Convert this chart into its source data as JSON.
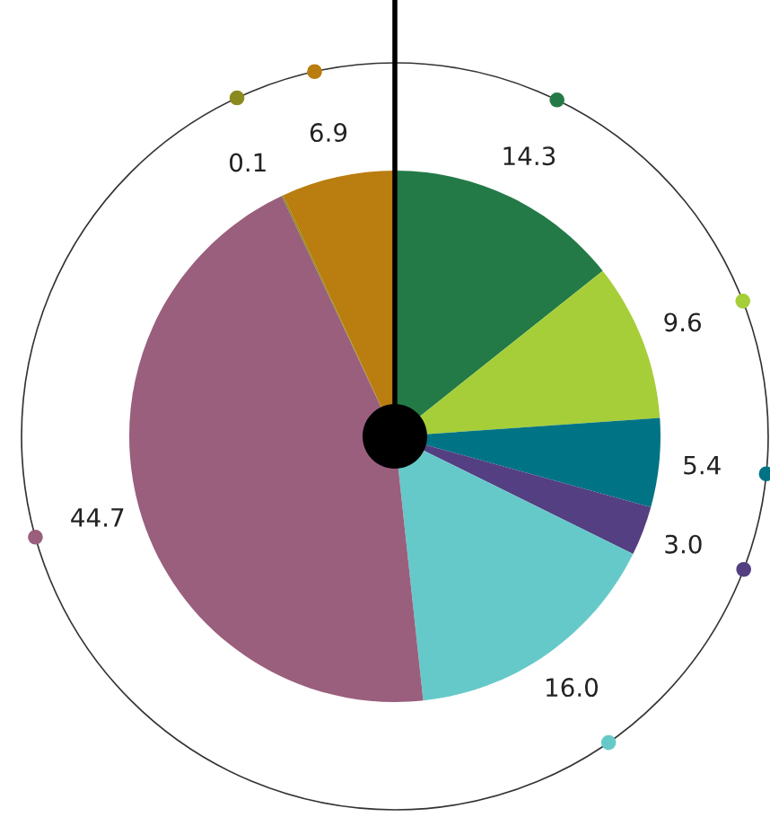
{
  "chart_data": {
    "type": "pie",
    "categories": [
      null,
      null,
      null,
      null,
      null,
      null,
      null,
      null
    ],
    "values": [
      14.3,
      9.6,
      5.4,
      3.0,
      16.0,
      44.7,
      0.1,
      6.9
    ],
    "colors": [
      "#237a47",
      "#a6ce39",
      "#007385",
      "#533f82",
      "#66c9c9",
      "#9a5f7d",
      "#8b8a1e",
      "#b97d10"
    ],
    "value_labels": [
      "14.3",
      "9.6",
      "5.4",
      "3.0",
      "16.0",
      "44.7",
      "0.1",
      "6.9"
    ]
  }
}
